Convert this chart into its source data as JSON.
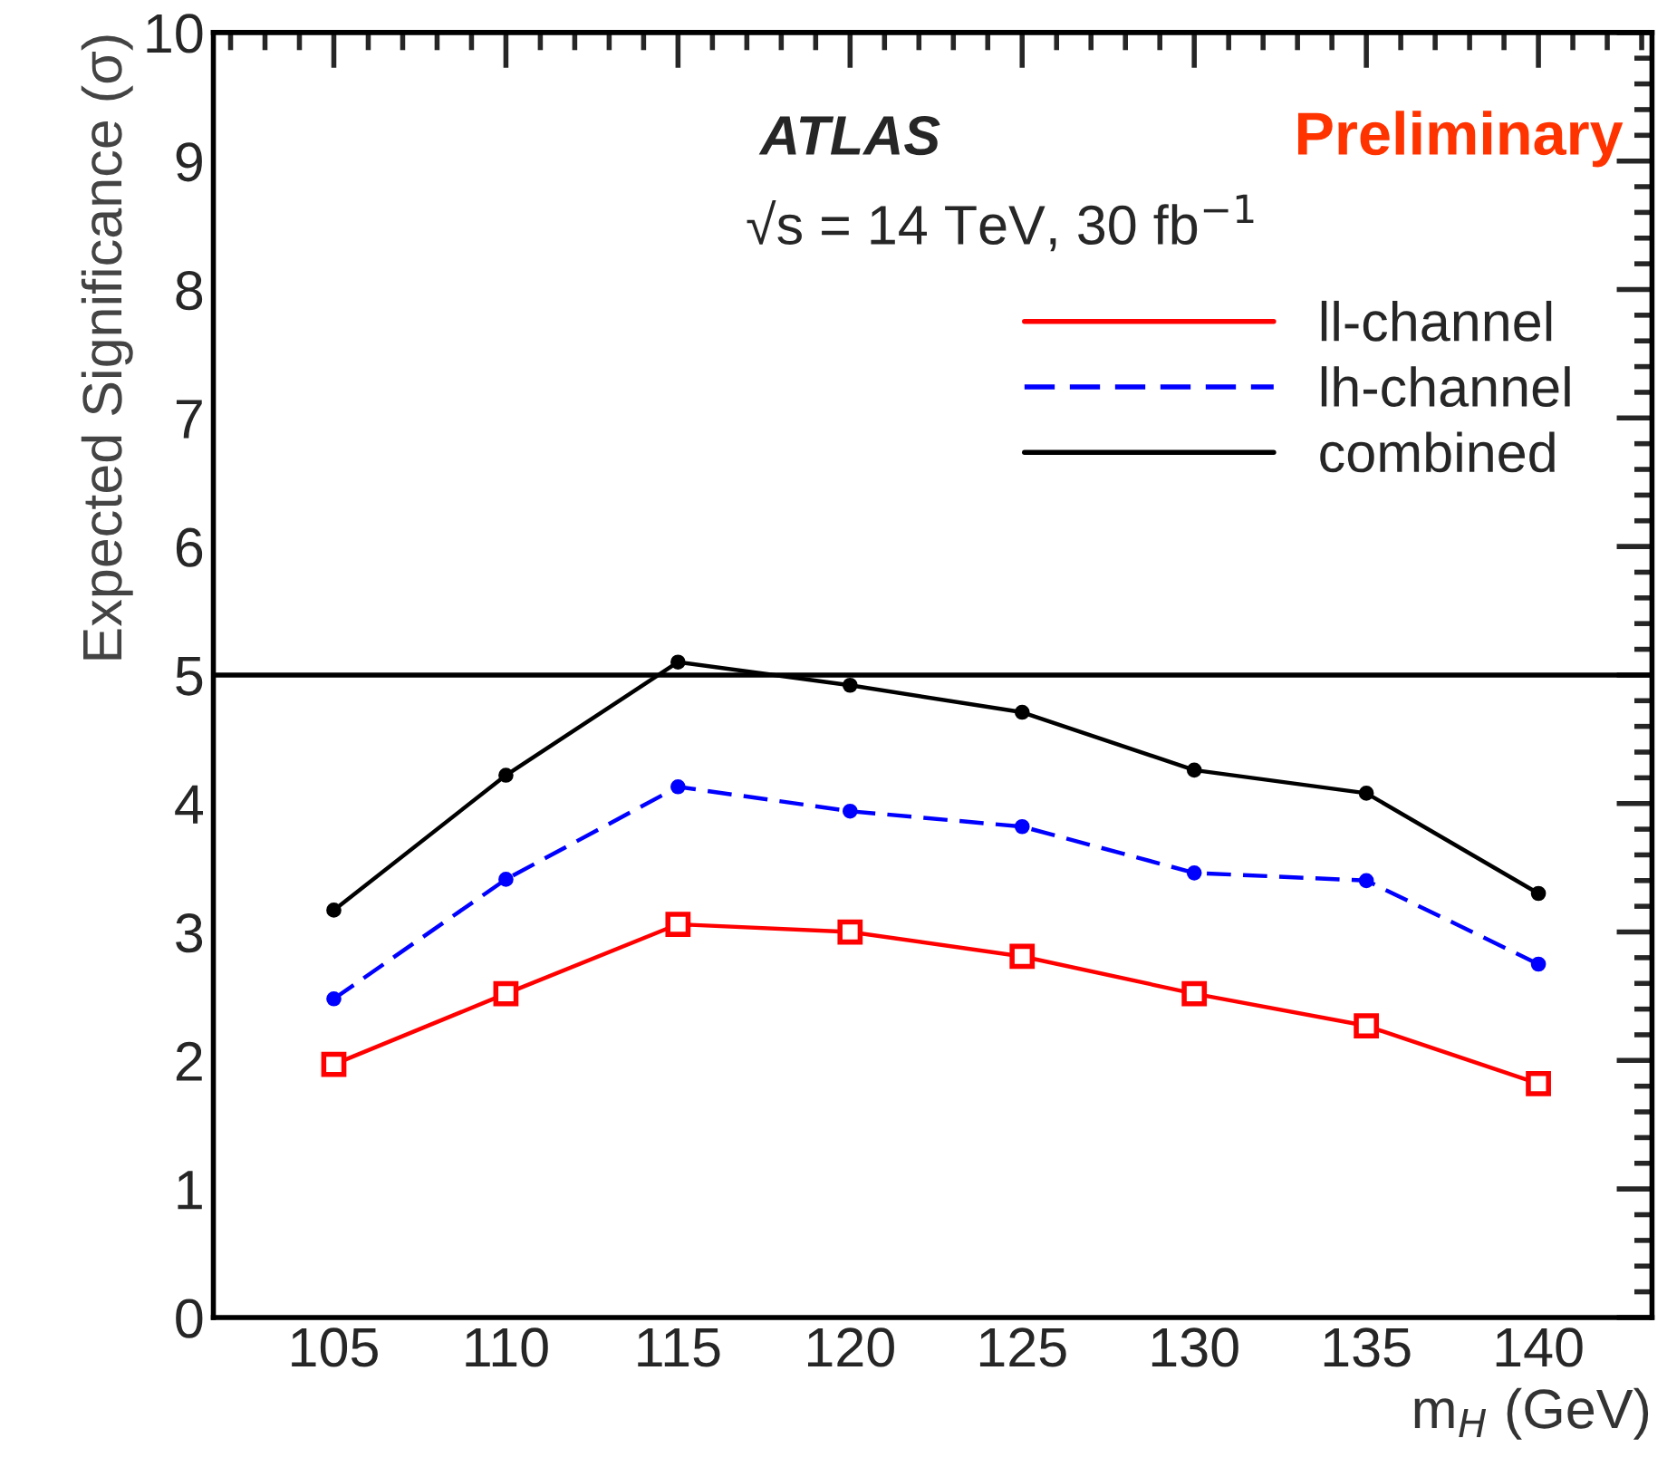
{
  "chart_data": {
    "type": "line",
    "xlabel": "m$_{H}$ (GeV)",
    "ylabel": "Expected Significance (σ)",
    "x": [
      105,
      110,
      115,
      120,
      125,
      130,
      135,
      140
    ],
    "series": [
      {
        "name": "ll-channel",
        "color": "#ff0000",
        "marker": "square",
        "line_style": "solid",
        "values": [
          1.97,
          2.52,
          3.06,
          3.0,
          2.81,
          2.52,
          2.27,
          1.82
        ]
      },
      {
        "name": "lh-channel",
        "color": "#0000ff",
        "marker": "circle",
        "line_style": "dashed",
        "values": [
          2.48,
          3.41,
          4.13,
          3.94,
          3.82,
          3.46,
          3.4,
          2.75
        ]
      },
      {
        "name": "combined",
        "color": "#000000",
        "marker": "circle",
        "line_style": "solid",
        "values": [
          3.17,
          4.22,
          5.1,
          4.92,
          4.71,
          4.26,
          4.08,
          3.3
        ]
      }
    ],
    "xlim": [
      101.5,
      143.3
    ],
    "xticks": [
      105,
      110,
      115,
      120,
      125,
      130,
      135,
      140
    ],
    "ylim": [
      0,
      10
    ],
    "yticks": [
      0,
      1,
      2,
      3,
      4,
      5,
      6,
      7,
      8,
      9,
      10
    ],
    "ref_lines": [
      {
        "axis": "y",
        "value": 5,
        "label": null,
        "color": "#000000",
        "line_style": "solid"
      }
    ],
    "annotations": [
      "ATLAS",
      "Preliminary",
      "√s = 14 TeV, 30 fb$^{−1}$"
    ],
    "legend": "top right",
    "grid": false
  }
}
